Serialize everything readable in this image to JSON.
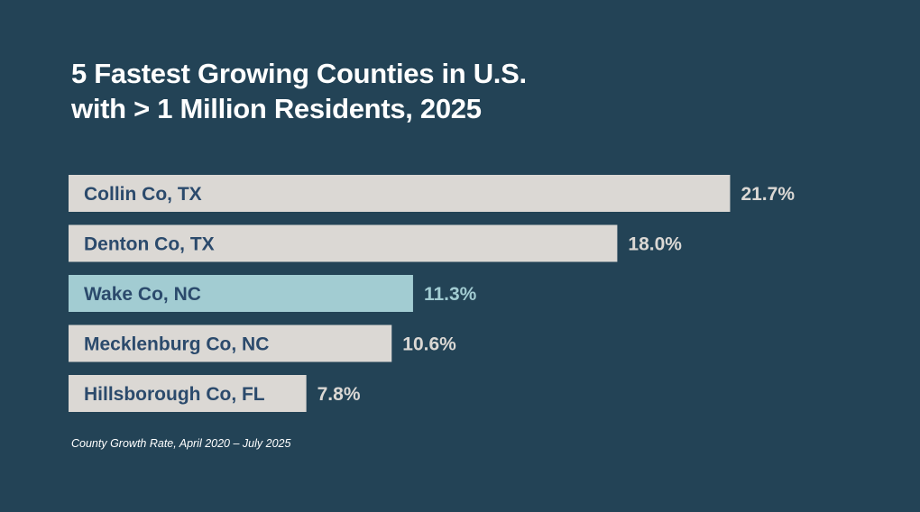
{
  "chart_data": {
    "type": "bar",
    "orientation": "horizontal",
    "title_lines": [
      "5 Fastest Growing Counties in U.S.",
      "with > 1 Million Residents, 2025"
    ],
    "categories": [
      "Collin Co, TX",
      "Denton Co, TX",
      "Wake Co, NC",
      "Mecklenburg Co, NC",
      "Hillsborough Co, FL"
    ],
    "values": [
      21.7,
      18.0,
      11.3,
      10.6,
      7.8
    ],
    "value_labels": [
      "21.7%",
      "18.0%",
      "11.3%",
      "10.6%",
      "7.8%"
    ],
    "highlighted": "Wake Co, NC",
    "note": "County Growth Rate, April 2020 – July 2025",
    "grid": false,
    "colors": {
      "background": "#234356",
      "bar": "#dbd8d4",
      "highlight": "#a2ccd2",
      "label": "#2b4a6c",
      "value": "#dbd8d4"
    }
  }
}
